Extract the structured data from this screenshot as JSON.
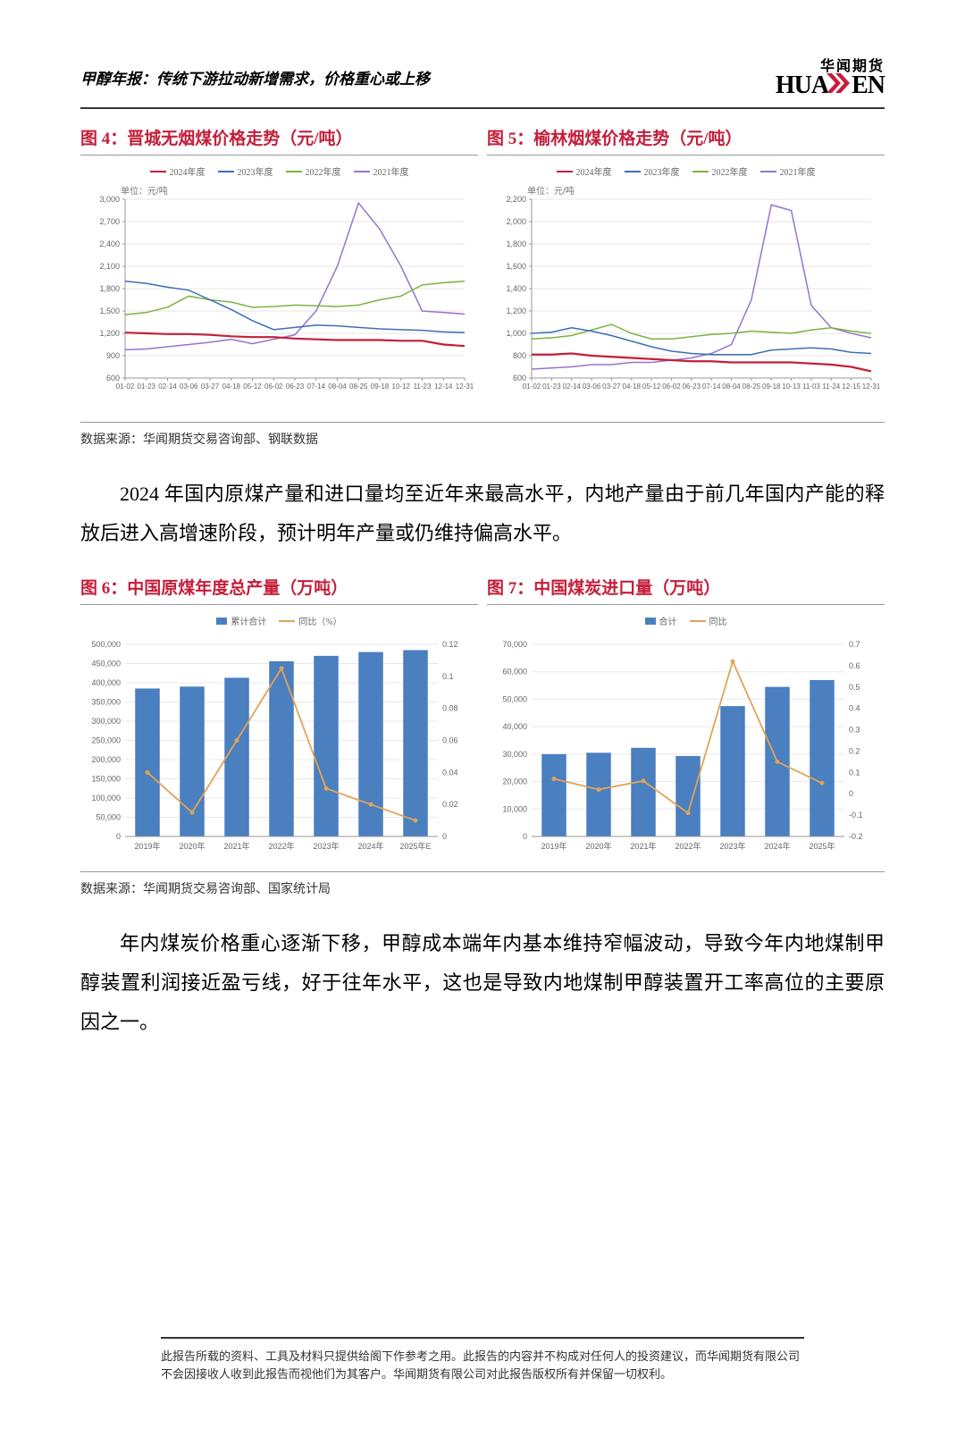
{
  "header": {
    "title": "甲醇年报：传统下游拉动新增需求，价格重心或上移",
    "logo_cn": "华闻期货",
    "logo_en_a": "HUA",
    "logo_en_b": "EN"
  },
  "fig4": {
    "title": "图 4：晋城无烟煤价格走势（元/吨）",
    "type": "line",
    "unit_label": "单位：元/吨",
    "legend": [
      {
        "label": "2024年度",
        "color": "#c41e3a"
      },
      {
        "label": "2023年度",
        "color": "#3b6fb5"
      },
      {
        "label": "2022年度",
        "color": "#7cb342"
      },
      {
        "label": "2021年度",
        "color": "#9575cd"
      }
    ],
    "ylim": [
      600,
      3000
    ],
    "ytick_step": 300,
    "yticks": [
      600,
      900,
      1200,
      1500,
      1800,
      2100,
      2400,
      2700,
      3000
    ],
    "xticks": [
      "01-02",
      "01-23",
      "02-14",
      "03-06",
      "03-27",
      "04-18",
      "05-12",
      "06-02",
      "06-23",
      "07-14",
      "08-04",
      "08-25",
      "09-18",
      "10-12",
      "11-23",
      "12-14",
      "12-31"
    ],
    "series": {
      "2024": [
        1210,
        1200,
        1190,
        1190,
        1180,
        1160,
        1150,
        1150,
        1130,
        1120,
        1110,
        1110,
        1110,
        1100,
        1100,
        1050,
        1030
      ],
      "2023": [
        1900,
        1870,
        1820,
        1780,
        1650,
        1520,
        1370,
        1250,
        1280,
        1310,
        1300,
        1280,
        1260,
        1250,
        1240,
        1220,
        1210
      ],
      "2022": [
        1450,
        1480,
        1550,
        1700,
        1650,
        1620,
        1550,
        1560,
        1580,
        1570,
        1560,
        1580,
        1650,
        1700,
        1850,
        1880,
        1900
      ],
      "2021": [
        980,
        990,
        1020,
        1050,
        1080,
        1120,
        1060,
        1120,
        1180,
        1500,
        2100,
        2950,
        2600,
        2100,
        1500,
        1480,
        1460
      ]
    },
    "background_color": "#ffffff",
    "grid_color": "#e5e5e5",
    "tick_fontsize": 9,
    "label_fontsize": 10
  },
  "fig5": {
    "title": "图 5：榆林烟煤价格走势（元/吨）",
    "type": "line",
    "unit_label": "单位：元/吨",
    "legend": [
      {
        "label": "2024年度",
        "color": "#c41e3a"
      },
      {
        "label": "2023年度",
        "color": "#3b6fb5"
      },
      {
        "label": "2022年度",
        "color": "#7cb342"
      },
      {
        "label": "2021年度",
        "color": "#9575cd"
      }
    ],
    "ylim": [
      600,
      2200
    ],
    "ytick_step": 200,
    "yticks": [
      600,
      800,
      1000,
      1200,
      1400,
      1600,
      1800,
      2000,
      2200
    ],
    "xticks": [
      "01-02",
      "01-23",
      "02-14",
      "03-06",
      "03-27",
      "04-18",
      "05-12",
      "06-02",
      "06-23",
      "07-14",
      "08-04",
      "08-25",
      "09-18",
      "10-13",
      "11-03",
      "11-24",
      "12-15",
      "12-31"
    ],
    "series": {
      "2024": [
        810,
        810,
        820,
        800,
        790,
        780,
        770,
        760,
        750,
        750,
        740,
        740,
        740,
        740,
        730,
        720,
        700,
        660
      ],
      "2023": [
        1000,
        1010,
        1050,
        1020,
        980,
        930,
        880,
        840,
        820,
        810,
        810,
        810,
        850,
        860,
        870,
        860,
        830,
        820
      ],
      "2022": [
        950,
        960,
        980,
        1030,
        1080,
        1000,
        950,
        950,
        970,
        990,
        1000,
        1020,
        1010,
        1000,
        1030,
        1050,
        1020,
        1000
      ],
      "2021": [
        680,
        690,
        700,
        720,
        720,
        740,
        740,
        760,
        780,
        820,
        900,
        1300,
        2150,
        2100,
        1250,
        1050,
        1000,
        960
      ]
    },
    "background_color": "#ffffff",
    "grid_color": "#e5e5e5",
    "tick_fontsize": 9,
    "label_fontsize": 10
  },
  "source1": "数据来源：华闻期货交易咨询部、钢联数据",
  "paragraph1": "2024 年国内原煤产量和进口量均至近年来最高水平，内地产量由于前几年国内产能的释放后进入高增速阶段，预计明年产量或仍维持偏高水平。",
  "fig6": {
    "title": "图 6：中国原煤年度总产量（万吨）",
    "type": "bar-line",
    "legend": [
      {
        "label": "累计合计",
        "color": "#4a7fc0",
        "kind": "bar"
      },
      {
        "label": "同比（%）",
        "color": "#e0a458",
        "kind": "line"
      }
    ],
    "categories": [
      "2019年",
      "2020年",
      "2021年",
      "2022年",
      "2023年",
      "2024年",
      "2025年E"
    ],
    "bars": [
      385000,
      390000,
      413000,
      456000,
      470000,
      480000,
      485000
    ],
    "line": [
      0.04,
      0.015,
      0.06,
      0.105,
      0.03,
      0.02,
      0.01
    ],
    "ylim_left": [
      0,
      500000
    ],
    "ytick_left_step": 50000,
    "yticks_left": [
      0,
      50000,
      100000,
      150000,
      200000,
      250000,
      300000,
      350000,
      400000,
      450000,
      500000
    ],
    "ylim_right": [
      0,
      0.12
    ],
    "ytick_right_step": 0.02,
    "yticks_right": [
      0,
      0.02,
      0.04,
      0.06,
      0.08,
      0.1,
      0.12
    ],
    "bar_color": "#4a7fc0",
    "line_color": "#e0a458",
    "background_color": "#ffffff",
    "grid_color": "#e8e8e8",
    "tick_fontsize": 9,
    "bar_width": 0.55
  },
  "fig7": {
    "title": "图 7：中国煤炭进口量（万吨）",
    "type": "bar-line",
    "legend": [
      {
        "label": "合计",
        "color": "#4a7fc0",
        "kind": "bar"
      },
      {
        "label": "同比",
        "color": "#e0a458",
        "kind": "line"
      }
    ],
    "categories": [
      "2019年",
      "2020年",
      "2021年",
      "2022年",
      "2023年",
      "2024年",
      "2025年"
    ],
    "bars": [
      30000,
      30500,
      32300,
      29300,
      47500,
      54500,
      57000
    ],
    "line": [
      0.07,
      0.02,
      0.06,
      -0.09,
      0.62,
      0.15,
      0.05
    ],
    "ylim_left": [
      0,
      70000
    ],
    "ytick_left_step": 10000,
    "yticks_left": [
      0,
      10000,
      20000,
      30000,
      40000,
      50000,
      60000,
      70000
    ],
    "ylim_right": [
      -0.2,
      0.7
    ],
    "ytick_right_step": 0.1,
    "yticks_right": [
      -0.2,
      -0.1,
      0,
      0.1,
      0.2,
      0.3,
      0.4,
      0.5,
      0.6,
      0.7
    ],
    "bar_color": "#4a7fc0",
    "line_color": "#e0a458",
    "background_color": "#ffffff",
    "grid_color": "#e8e8e8",
    "tick_fontsize": 9,
    "bar_width": 0.55
  },
  "source2": "数据来源：华闻期货交易咨询部、国家统计局",
  "paragraph2": "年内煤炭价格重心逐渐下移，甲醇成本端年内基本维持窄幅波动，导致今年内地煤制甲醇装置利润接近盈亏线，好于往年水平，这也是导致内地煤制甲醇装置开工率高位的主要原因之一。",
  "footer": "此报告所载的资料、工具及材料只提供给阁下作参考之用。此报告的内容并不构成对任何人的投资建议，而华闻期货有限公司不会因接收人收到此报告而视他们为其客户。华闻期货有限公司对此报告版权所有并保留一切权利。"
}
